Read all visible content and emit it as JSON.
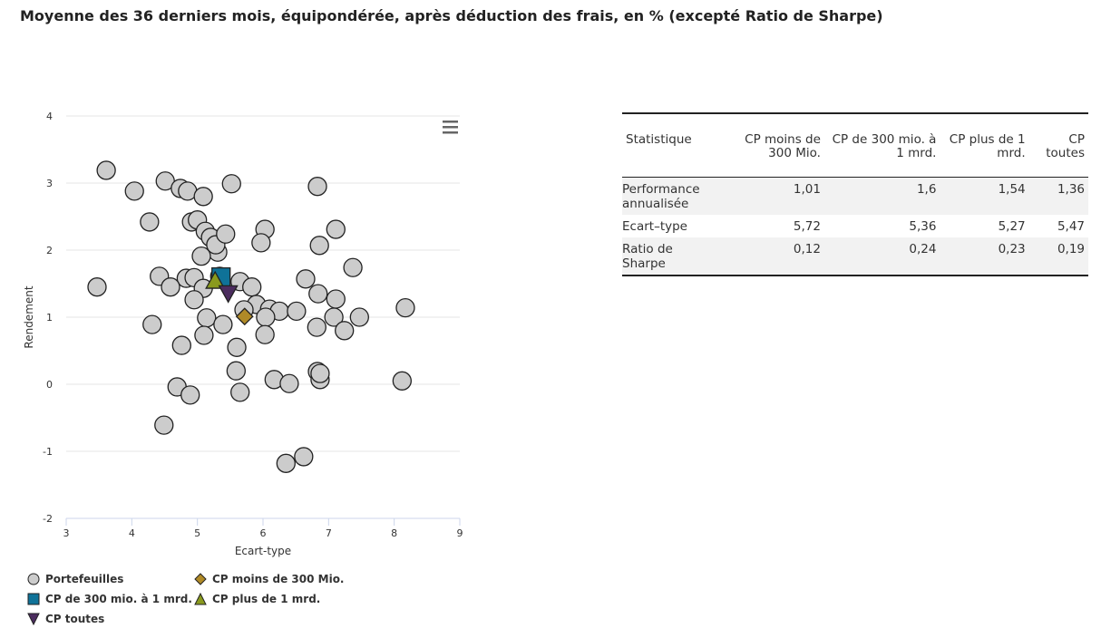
{
  "title": "Moyenne des 36 derniers mois, équipondérée, après déduction des frais, en % (excepté Ratio de Sharpe)",
  "chart_data": {
    "type": "scatter",
    "xlabel": "Ecart-type",
    "ylabel": "Rendement",
    "xlim": [
      3,
      9
    ],
    "ylim": [
      -2,
      4
    ],
    "xticks": [
      "3",
      "4",
      "5",
      "6",
      "7",
      "8",
      "9"
    ],
    "yticks": [
      "-2",
      "-1",
      "0",
      "1",
      "2",
      "3",
      "4"
    ],
    "grid": true,
    "legend": "bottom-left",
    "series": [
      {
        "name": "Portefeuilles",
        "marker": "circle",
        "color": "#cccccc",
        "points": [
          [
            3.61,
            3.19
          ],
          [
            4.04,
            2.88
          ],
          [
            4.51,
            3.03
          ],
          [
            4.74,
            2.92
          ],
          [
            4.85,
            2.88
          ],
          [
            5.09,
            2.8
          ],
          [
            5.52,
            2.99
          ],
          [
            6.83,
            2.95
          ],
          [
            4.27,
            2.42
          ],
          [
            4.91,
            2.42
          ],
          [
            5.0,
            2.45
          ],
          [
            5.12,
            2.28
          ],
          [
            5.2,
            2.19
          ],
          [
            5.31,
            1.97
          ],
          [
            5.28,
            2.08
          ],
          [
            5.43,
            2.24
          ],
          [
            6.03,
            2.31
          ],
          [
            5.97,
            2.11
          ],
          [
            7.11,
            2.31
          ],
          [
            6.86,
            2.07
          ],
          [
            7.37,
            1.74
          ],
          [
            5.06,
            1.91
          ],
          [
            4.42,
            1.61
          ],
          [
            4.83,
            1.58
          ],
          [
            4.95,
            1.59
          ],
          [
            5.09,
            1.43
          ],
          [
            4.59,
            1.45
          ],
          [
            5.65,
            1.53
          ],
          [
            5.34,
            1.61
          ],
          [
            3.47,
            1.45
          ],
          [
            5.83,
            1.45
          ],
          [
            6.65,
            1.57
          ],
          [
            6.84,
            1.35
          ],
          [
            7.11,
            1.27
          ],
          [
            4.95,
            1.26
          ],
          [
            5.9,
            1.19
          ],
          [
            6.1,
            1.12
          ],
          [
            5.71,
            1.11
          ],
          [
            6.25,
            1.09
          ],
          [
            6.51,
            1.09
          ],
          [
            6.04,
            1.0
          ],
          [
            5.14,
            0.99
          ],
          [
            5.39,
            0.89
          ],
          [
            4.31,
            0.89
          ],
          [
            6.82,
            0.85
          ],
          [
            7.08,
            1.0
          ],
          [
            7.47,
            1.0
          ],
          [
            7.24,
            0.8
          ],
          [
            8.17,
            1.14
          ],
          [
            5.1,
            0.73
          ],
          [
            6.03,
            0.74
          ],
          [
            4.76,
            0.58
          ],
          [
            5.6,
            0.55
          ],
          [
            5.59,
            0.2
          ],
          [
            6.83,
            0.19
          ],
          [
            6.87,
            0.07
          ],
          [
            6.87,
            0.16
          ],
          [
            6.17,
            0.07
          ],
          [
            6.4,
            0.01
          ],
          [
            8.12,
            0.05
          ],
          [
            4.69,
            -0.04
          ],
          [
            5.65,
            -0.12
          ],
          [
            4.89,
            -0.16
          ],
          [
            4.49,
            -0.61
          ],
          [
            6.35,
            -1.18
          ],
          [
            6.62,
            -1.08
          ]
        ]
      },
      {
        "name": "CP moins de 300 Mio.",
        "marker": "diamond",
        "color": "#b08a27",
        "points": [
          [
            5.72,
            1.01
          ]
        ]
      },
      {
        "name": "CP de 300 mio. à 1 mrd.",
        "marker": "square",
        "color": "#0f7298",
        "points": [
          [
            5.36,
            1.6
          ]
        ]
      },
      {
        "name": "CP plus de 1 mrd.",
        "marker": "triangle",
        "color": "#8a9a1e",
        "points": [
          [
            5.27,
            1.54
          ]
        ]
      },
      {
        "name": "CP toutes",
        "marker": "triangle-down",
        "color": "#4b2c5e",
        "points": [
          [
            5.47,
            1.36
          ]
        ]
      }
    ]
  },
  "table": {
    "headers": [
      "Statistique",
      "CP moins de 300 Mio.",
      "CP de 300 mio. à 1 mrd.",
      "CP plus de 1 mrd.",
      "CP toutes"
    ],
    "rows": [
      [
        "Performance annualisée",
        "1,01",
        "1,6",
        "1,54",
        "1,36"
      ],
      [
        "Ecart–type",
        "5,72",
        "5,36",
        "5,27",
        "5,47"
      ],
      [
        "Ratio de Sharpe",
        "0,12",
        "0,24",
        "0,23",
        "0,19"
      ]
    ]
  }
}
